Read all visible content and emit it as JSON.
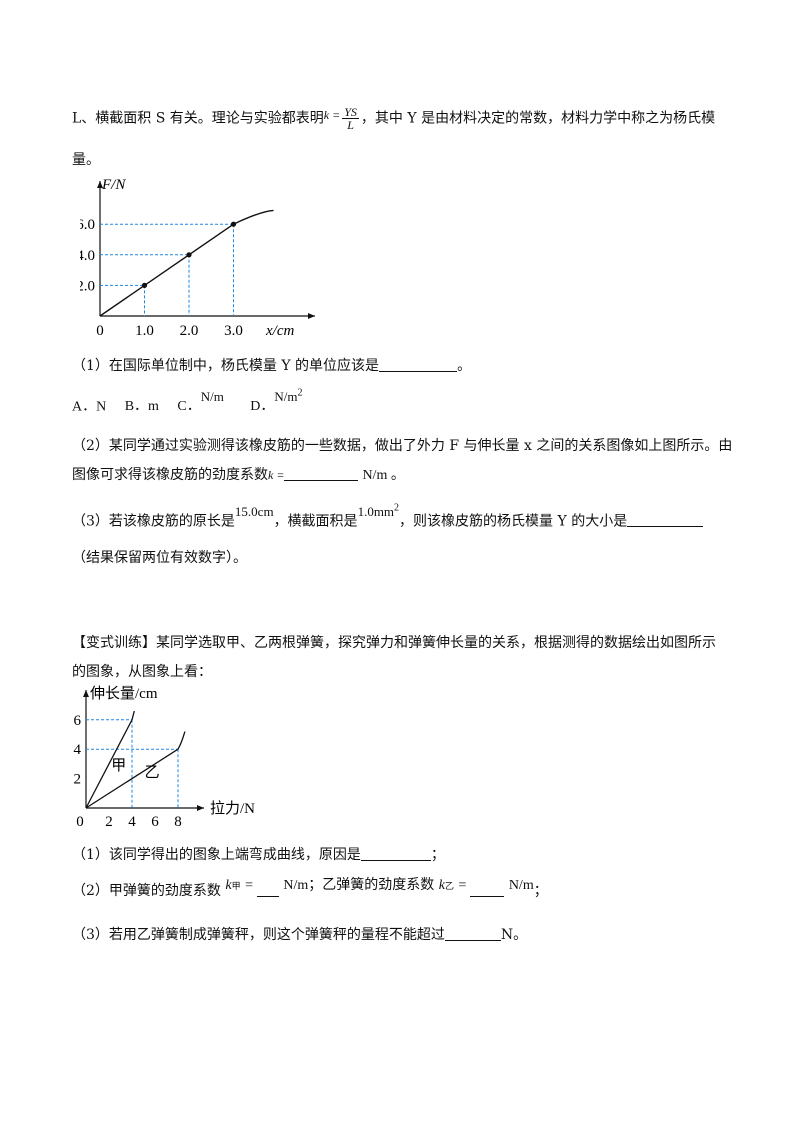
{
  "intro": {
    "line1_prefix": "L、横截面积 S 有关。理论与实验都表明",
    "formula_k": "k =",
    "formula_num": "YS",
    "formula_den": "L",
    "line1_suffix": "，其中 Y 是由材料决定的常数，材料力学中称之为杨氏模",
    "line2": "量。"
  },
  "chart_data": [
    {
      "type": "line",
      "title": "",
      "xlabel": "x/cm",
      "ylabel": "F/N",
      "x_ticks": [
        "0",
        "1.0",
        "2.0",
        "3.0"
      ],
      "y_ticks": [
        "2.0",
        "4.0",
        "6.0"
      ],
      "series": [
        {
          "x": [
            0,
            1.0,
            2.0,
            3.0,
            3.3,
            3.6,
            3.9
          ],
          "y": [
            0,
            2.0,
            4.0,
            6.0,
            6.5,
            6.8,
            6.9
          ]
        }
      ],
      "marked_points": [
        {
          "x": 1.0,
          "y": 2.0
        },
        {
          "x": 2.0,
          "y": 4.0
        },
        {
          "x": 3.0,
          "y": 6.0
        }
      ],
      "xlim": [
        0,
        4.0
      ],
      "ylim": [
        0,
        7.5
      ],
      "guides": "dashed",
      "guide_color": "#1e88e5"
    },
    {
      "type": "line",
      "title": "",
      "xlabel": "拉力/N",
      "ylabel": "伸长量/cm",
      "x_ticks": [
        "0",
        "2",
        "4",
        "6",
        "8"
      ],
      "y_ticks": [
        "2",
        "4",
        "6"
      ],
      "series": [
        {
          "name": "甲",
          "x": [
            0,
            4.0,
            4.2
          ],
          "y": [
            0,
            6.0,
            6.6
          ]
        },
        {
          "name": "乙",
          "x": [
            0,
            8.0,
            8.3,
            8.6
          ],
          "y": [
            0,
            4.0,
            4.4,
            5.2
          ]
        }
      ],
      "xlim": [
        0,
        9.5
      ],
      "ylim": [
        0,
        7.5
      ],
      "guides": "dashed",
      "guide_color": "#1e88e5"
    }
  ],
  "q1": {
    "q1_text": "（1）在国际单位制中，杨氏模量 Y 的单位应该是",
    "q1_end": "。",
    "opt_a": "A．N",
    "opt_b": "B．m",
    "opt_c": "C．",
    "opt_c_val": "N/m",
    "opt_d": "D．",
    "opt_d_val": "N/m",
    "opt_d_sup": "2",
    "q2_line1": "（2）某同学通过实验测得该橡皮筋的一些数据，做出了外力 F 与伸长量 x 之间的关系图像如上图所示。由",
    "q2_line2_prefix": "图像可求得该橡皮筋的劲度系数",
    "q2_k": "k =",
    "q2_unit": "N/m 。",
    "q3_prefix": "（3）若该橡皮筋的原长是",
    "q3_len": "15.0cm",
    "q3_mid": "，横截面积是",
    "q3_area": "1.0mm",
    "q3_area_sup": "2",
    "q3_suffix": "，则该橡皮筋的杨氏模量 Y 的大小是",
    "q3_note": "（结果保留两位有效数字）。"
  },
  "variant": {
    "line1": "【变式训练】某同学选取甲、乙两根弹簧，探究弹力和弹簧伸长量的关系，根据测得的数据绘出如图所示",
    "line2": "的图象，从图象上看：",
    "s1_prefix": "（1）该同学得出的图象上端弯成曲线，原因是",
    "s1_end": "；",
    "s2_prefix": "（2）甲弹簧的劲度系数",
    "s2_k_jia": "k",
    "s2_sub_jia": "甲",
    "s2_eq": "=",
    "s2_unit1": "N/m；乙弹簧的劲度系数",
    "s2_k_yi": "k",
    "s2_sub_yi": "乙",
    "s2_unit2": "N/m",
    "s2_end": "；",
    "s3_prefix": "（3）若用乙弹簧制成弹簧秤，则这个弹簧秤的量程不能超过",
    "s3_end": "N。"
  }
}
